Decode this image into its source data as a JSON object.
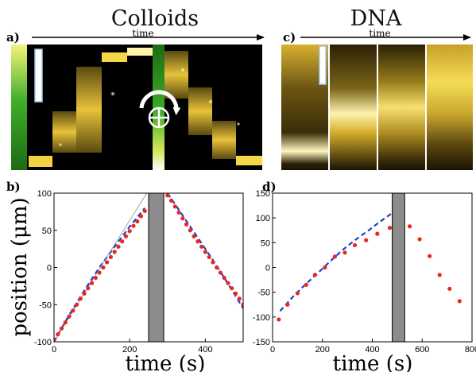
{
  "titles": {
    "left": "Colloids",
    "right": "DNA"
  },
  "panels": {
    "a": {
      "letter": "a)",
      "arrow_label": "time"
    },
    "b": {
      "letter": "b)"
    },
    "c": {
      "letter": "c)",
      "arrow_label": "time"
    },
    "d": {
      "letter": "d)"
    }
  },
  "axis_titles": {
    "ylabel": "position (μm)",
    "xlabel_b": "time (s)",
    "xlabel_d": "time (s)"
  },
  "colors": {
    "data_points": "#e8271e",
    "fit_line": "#1f3fd1",
    "reference_line": "#8a8a8a",
    "shaded_bar": "#8c8c8c",
    "colloid_band": "#e8c23a",
    "dna_band": "#f2d040",
    "background_dark": "#000000",
    "green_gradient": "#2f9a1e",
    "rotate_arrow": "#ffffff"
  },
  "chart_data": [
    {
      "panel": "b",
      "type": "scatter",
      "xlabel": "time (s)",
      "ylabel": "position (μm)",
      "xlim": [
        0,
        500
      ],
      "ylim": [
        -100,
        100
      ],
      "xticks": [
        "0",
        "200",
        "400"
      ],
      "yticks": [
        "100",
        "50",
        "0",
        "-50",
        "-100"
      ],
      "gray_bar": {
        "x_start": 250,
        "x_end": 290
      },
      "series": [
        {
          "kind": "points",
          "x": [
            0,
            10,
            20,
            30,
            40,
            50,
            60,
            70,
            80,
            90,
            100,
            110,
            120,
            130,
            140,
            150,
            160,
            170,
            180,
            190,
            200,
            210,
            220,
            230,
            240,
            300,
            310,
            320,
            330,
            340,
            350,
            360,
            370,
            380,
            390,
            400,
            410,
            420,
            430,
            440,
            450,
            460,
            470,
            480,
            490,
            500
          ],
          "y": [
            -97,
            -90,
            -82,
            -74,
            -66,
            -58,
            -50,
            -42,
            -35,
            -28,
            -21,
            -14,
            -7,
            0,
            7,
            14,
            21,
            28,
            35,
            42,
            49,
            56,
            62,
            69,
            76,
            97,
            90,
            82,
            74,
            66,
            58,
            50,
            42,
            35,
            28,
            21,
            14,
            7,
            0,
            -7,
            -14,
            -21,
            -28,
            -35,
            -42,
            -50
          ]
        },
        {
          "kind": "dashed-fit",
          "x": [
            0,
            40,
            80,
            120,
            160,
            200,
            240,
            300,
            340,
            380,
            420,
            460,
            500
          ],
          "y": [
            -100,
            -64,
            -31,
            0,
            28,
            55,
            80,
            100,
            70,
            40,
            10,
            -22,
            -55
          ]
        },
        {
          "kind": "thin-line",
          "x": [
            0,
            245
          ],
          "y": [
            -100,
            100
          ]
        }
      ]
    },
    {
      "panel": "d",
      "type": "scatter",
      "xlabel": "time (s)",
      "ylabel": "",
      "xlim": [
        0,
        800
      ],
      "ylim": [
        -150,
        150
      ],
      "xticks": [
        "0",
        "200",
        "400",
        "600",
        "800"
      ],
      "yticks": [
        "150",
        "100",
        "50",
        "0",
        "-50",
        "-100",
        "-150"
      ],
      "gray_bar": {
        "x_start": 480,
        "x_end": 530
      },
      "series": [
        {
          "kind": "points",
          "x": [
            25,
            60,
            100,
            135,
            170,
            210,
            250,
            290,
            330,
            375,
            420,
            470,
            550,
            590,
            630,
            670,
            710,
            750
          ],
          "y": [
            -105,
            -75,
            -52,
            -35,
            -15,
            0,
            22,
            30,
            45,
            55,
            68,
            80,
            83,
            57,
            23,
            -15,
            -43,
            -68
          ]
        },
        {
          "kind": "dashed-fit",
          "x": [
            30,
            80,
            130,
            180,
            230,
            280,
            330,
            380,
            430,
            480
          ],
          "y": [
            -88,
            -60,
            -35,
            -12,
            12,
            35,
            55,
            73,
            92,
            110
          ]
        }
      ]
    }
  ]
}
